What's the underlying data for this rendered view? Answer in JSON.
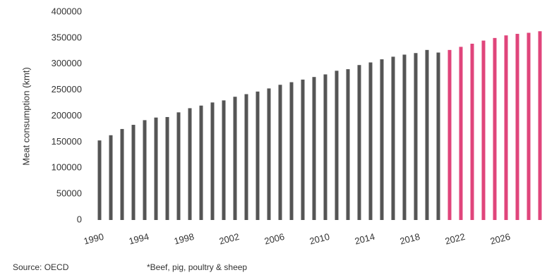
{
  "chart_data": {
    "type": "bar",
    "y_label": "Meat consumption (kmt)",
    "source": "Source: OECD",
    "footnote": "*Beef, pig, poultry & sheep",
    "categories": [
      1990,
      null,
      null,
      null,
      1994,
      null,
      null,
      null,
      1998,
      null,
      null,
      null,
      2002,
      null,
      null,
      null,
      2006,
      null,
      null,
      null,
      2010,
      null,
      null,
      null,
      2014,
      null,
      null,
      null,
      2018,
      null,
      null,
      null,
      2022,
      null,
      null,
      null,
      2026,
      null,
      null,
      null
    ],
    "values": [
      153000,
      163000,
      175000,
      183000,
      192000,
      197000,
      198000,
      207000,
      215000,
      220000,
      226000,
      230000,
      237000,
      242000,
      247000,
      253000,
      260000,
      265000,
      270000,
      275000,
      280000,
      287000,
      290000,
      298000,
      303000,
      309000,
      314000,
      318000,
      321000,
      327000,
      322000,
      327000,
      333000,
      339000,
      345000,
      350000,
      355000,
      358000,
      360000,
      363000
    ],
    "colors": [
      "#555555",
      "#555555",
      "#555555",
      "#555555",
      "#555555",
      "#555555",
      "#555555",
      "#555555",
      "#555555",
      "#555555",
      "#555555",
      "#555555",
      "#555555",
      "#555555",
      "#555555",
      "#555555",
      "#555555",
      "#555555",
      "#555555",
      "#555555",
      "#555555",
      "#555555",
      "#555555",
      "#555555",
      "#555555",
      "#555555",
      "#555555",
      "#555555",
      "#555555",
      "#555555",
      "#555555",
      "#e0457b",
      "#e0457b",
      "#e0457b",
      "#e0457b",
      "#e0457b",
      "#e0457b",
      "#e0457b",
      "#e0457b",
      "#e0457b"
    ],
    "ylim": [
      0,
      400000
    ],
    "yticks": [
      0,
      50000,
      100000,
      150000,
      200000,
      250000,
      300000,
      350000,
      400000
    ],
    "grid": false
  }
}
